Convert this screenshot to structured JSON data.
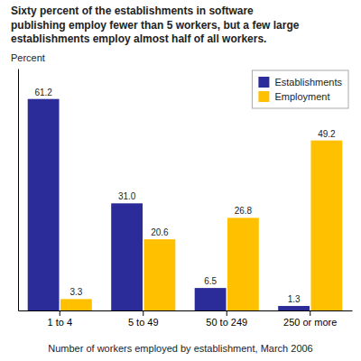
{
  "chart_data": {
    "type": "bar",
    "title": "Sixty percent of the establishments in software\npublishing employ fewer than 5 workers, but a few large\nestablishments employ almost half of all workers.",
    "ylabel": "Percent",
    "xlabel": "Number of workers employed by establishment, March 2006",
    "categories": [
      "1 to 4",
      "5 to 49",
      "50 to 249",
      "250 or more"
    ],
    "series": [
      {
        "name": "Establishments",
        "color": "#2B2B9A",
        "values": [
          61.2,
          31.0,
          6.5,
          1.3
        ],
        "value_labels": [
          "61.2",
          "31.0",
          "6.5",
          "1.3"
        ]
      },
      {
        "name": "Employment",
        "color": "#FFC000",
        "values": [
          3.3,
          20.6,
          26.8,
          49.2
        ]
      }
    ],
    "ylim": [
      0,
      70
    ],
    "legend": "upper right",
    "data_labels": true,
    "tick_labels": "x"
  }
}
